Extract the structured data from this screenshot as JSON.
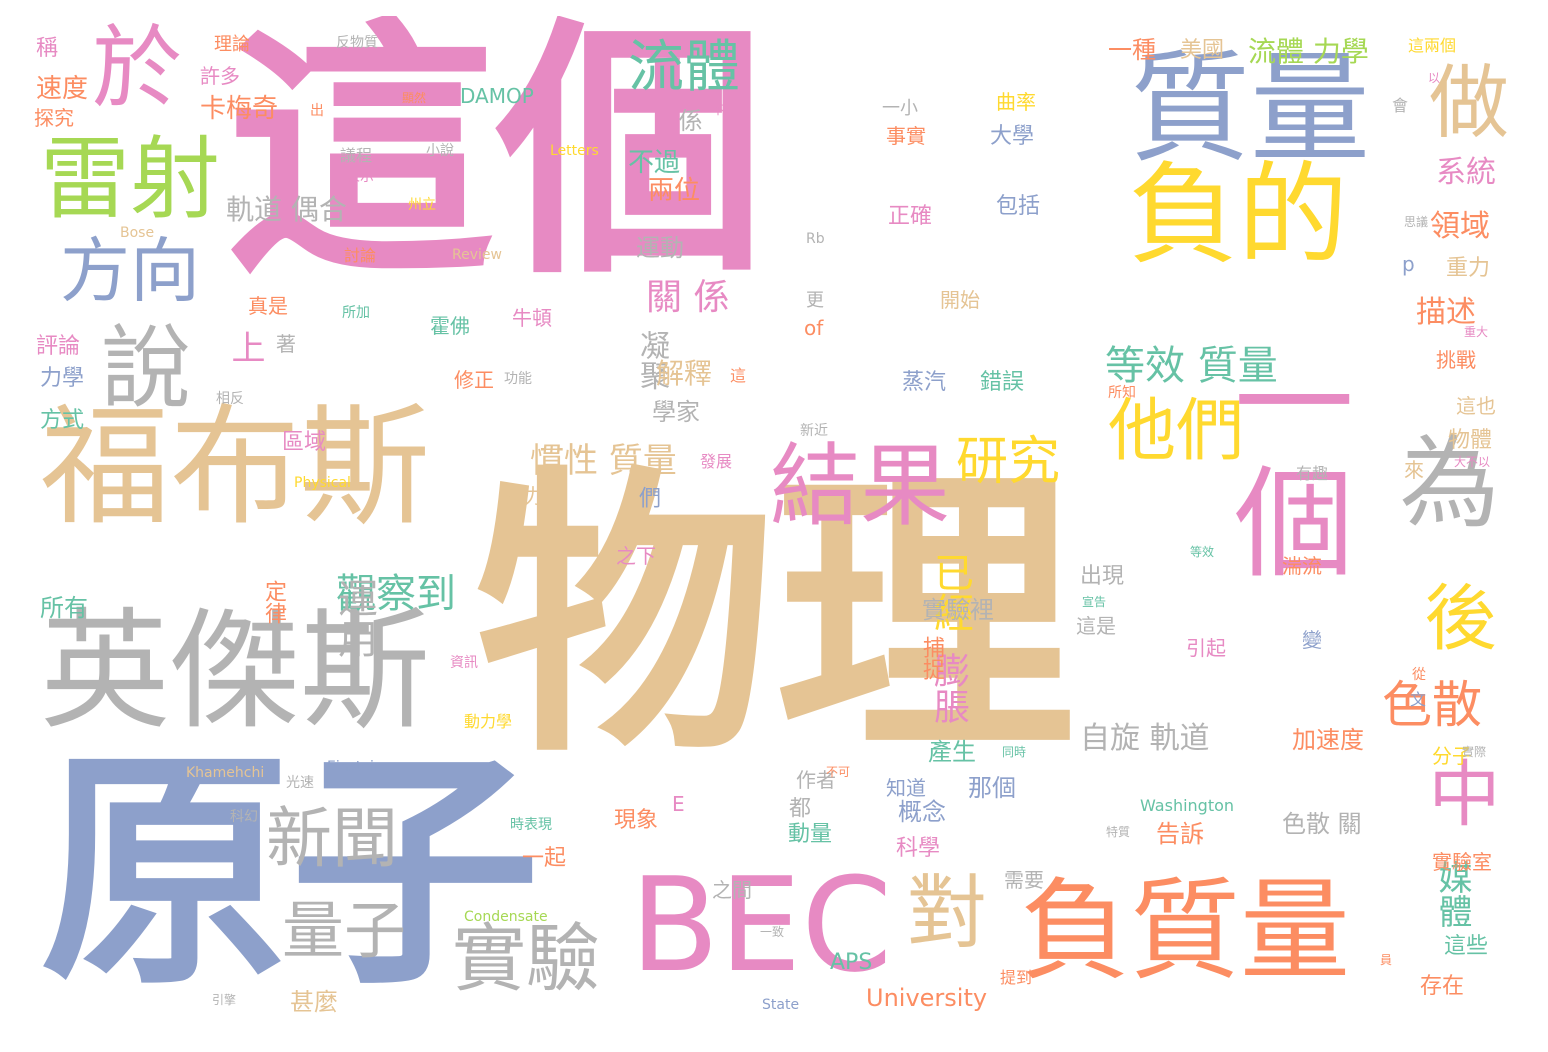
{
  "palette": {
    "pink": "#e78ac3",
    "tan": "#e5c494",
    "blue": "#8da0cb",
    "gray": "#b3b3b3",
    "green": "#a6d854",
    "yellow": "#ffd92f",
    "orange": "#fc8d62",
    "teal": "#66c2a5"
  },
  "words": [
    {
      "text": "這個",
      "color": "pink"
    },
    {
      "text": "物理",
      "color": "tan"
    },
    {
      "text": "原子",
      "color": "blue"
    },
    {
      "text": "福布斯",
      "color": "tan"
    },
    {
      "text": "英傑斯",
      "color": "gray"
    },
    {
      "text": "質量",
      "color": "blue"
    },
    {
      "text": "負的",
      "color": "yellow"
    },
    {
      "text": "負質量",
      "color": "orange"
    },
    {
      "text": "BEC",
      "color": "pink"
    },
    {
      "text": "一個",
      "color": "pink"
    },
    {
      "text": "結果",
      "color": "pink"
    },
    {
      "text": "為",
      "color": "gray"
    },
    {
      "text": "於",
      "color": "pink"
    },
    {
      "text": "雷射",
      "color": "green"
    },
    {
      "text": "說",
      "color": "gray"
    },
    {
      "text": "方向",
      "color": "blue"
    },
    {
      "text": "做",
      "color": "tan"
    },
    {
      "text": "對",
      "color": "tan"
    },
    {
      "text": "他們",
      "color": "yellow"
    },
    {
      "text": "後",
      "color": "yellow"
    },
    {
      "text": "中",
      "color": "pink"
    },
    {
      "text": "實驗",
      "color": "gray"
    },
    {
      "text": "新聞",
      "color": "gray"
    },
    {
      "text": "量子",
      "color": "gray"
    },
    {
      "text": "流體",
      "color": "teal"
    },
    {
      "text": "研究",
      "color": "yellow"
    },
    {
      "text": "色散",
      "color": "orange"
    },
    {
      "text": "等效 質量",
      "color": "teal"
    },
    {
      "text": "觀察到",
      "color": "teal"
    },
    {
      "text": "運用",
      "color": "gray"
    },
    {
      "text": "已經",
      "color": "yellow"
    },
    {
      "text": "慣性 質量",
      "color": "tan"
    },
    {
      "text": "關 係",
      "color": "pink"
    },
    {
      "text": "膨脹",
      "color": "pink"
    },
    {
      "text": "媒體",
      "color": "teal"
    },
    {
      "text": "系統",
      "color": "pink"
    },
    {
      "text": "領域",
      "color": "orange"
    },
    {
      "text": "描述",
      "color": "orange"
    },
    {
      "text": "自旋 軌道",
      "color": "gray"
    },
    {
      "text": "軌道 偶合",
      "color": "gray"
    },
    {
      "text": "流體 力學",
      "color": "green"
    },
    {
      "text": "一種",
      "color": "orange"
    },
    {
      "text": "美國",
      "color": "tan"
    },
    {
      "text": "上",
      "color": "pink"
    },
    {
      "text": "凝聚",
      "color": "gray"
    },
    {
      "text": "解釋",
      "color": "tan"
    },
    {
      "text": "不過",
      "color": "teal"
    },
    {
      "text": "兩位",
      "color": "orange"
    },
    {
      "text": "運動",
      "color": "gray"
    },
    {
      "text": "學家",
      "color": "gray"
    },
    {
      "text": "係",
      "color": "gray"
    },
    {
      "text": "速度",
      "color": "orange"
    },
    {
      "text": "卡梅奇",
      "color": "orange"
    },
    {
      "text": "理論",
      "color": "orange"
    },
    {
      "text": "許多",
      "color": "pink"
    },
    {
      "text": "稱",
      "color": "pink"
    },
    {
      "text": "探究",
      "color": "orange"
    },
    {
      "text": "DAMOP",
      "color": "teal"
    },
    {
      "text": "牛頓",
      "color": "pink"
    },
    {
      "text": "霍佛",
      "color": "teal"
    },
    {
      "text": "區域",
      "color": "pink"
    },
    {
      "text": "評論",
      "color": "pink"
    },
    {
      "text": "力學",
      "color": "blue"
    },
    {
      "text": "方式",
      "color": "teal"
    },
    {
      "text": "所有",
      "color": "teal"
    },
    {
      "text": "甚麼",
      "color": "tan"
    },
    {
      "text": "定律",
      "color": "orange"
    },
    {
      "text": "外力",
      "color": "tan"
    },
    {
      "text": "們",
      "color": "blue"
    },
    {
      "text": "之下",
      "color": "pink"
    },
    {
      "text": "出現",
      "color": "gray"
    },
    {
      "text": "這是",
      "color": "gray"
    },
    {
      "text": "實驗裡",
      "color": "gray"
    },
    {
      "text": "捕捉",
      "color": "orange"
    },
    {
      "text": "產生",
      "color": "teal"
    },
    {
      "text": "那個",
      "color": "blue"
    },
    {
      "text": "概念",
      "color": "blue"
    },
    {
      "text": "作者",
      "color": "gray"
    },
    {
      "text": "都",
      "color": "gray"
    },
    {
      "text": "科學",
      "color": "pink"
    },
    {
      "text": "動量",
      "color": "teal"
    },
    {
      "text": "需要",
      "color": "gray"
    },
    {
      "text": "現象",
      "color": "orange"
    },
    {
      "text": "一起",
      "color": "orange"
    },
    {
      "text": "E",
      "color": "pink"
    },
    {
      "text": "告訴",
      "color": "orange"
    },
    {
      "text": "色散 關",
      "color": "gray"
    },
    {
      "text": "University",
      "color": "orange"
    },
    {
      "text": "APS",
      "color": "teal"
    },
    {
      "text": "存在",
      "color": "orange"
    },
    {
      "text": "這些",
      "color": "teal"
    },
    {
      "text": "實驗室",
      "color": "orange"
    },
    {
      "text": "加速度",
      "color": "orange"
    },
    {
      "text": "分子",
      "color": "yellow"
    },
    {
      "text": "蒸汽",
      "color": "blue"
    },
    {
      "text": "錯誤",
      "color": "teal"
    },
    {
      "text": "開始",
      "color": "tan"
    },
    {
      "text": "曲率",
      "color": "yellow"
    },
    {
      "text": "事實",
      "color": "orange"
    },
    {
      "text": "大學",
      "color": "blue"
    },
    {
      "text": "正確",
      "color": "pink"
    },
    {
      "text": "包括",
      "color": "blue"
    },
    {
      "text": "一小",
      "color": "gray"
    },
    {
      "text": "物體",
      "color": "tan"
    },
    {
      "text": "重力",
      "color": "tan"
    },
    {
      "text": "挑戰",
      "color": "orange"
    },
    {
      "text": "這也",
      "color": "tan"
    },
    {
      "text": "修正",
      "color": "orange"
    },
    {
      "text": "真是",
      "color": "orange"
    },
    {
      "text": "著",
      "color": "gray"
    },
    {
      "text": "更",
      "color": "gray"
    },
    {
      "text": "of",
      "color": "orange"
    },
    {
      "text": "p",
      "color": "blue"
    },
    {
      "text": "變",
      "color": "blue"
    },
    {
      "text": "引起",
      "color": "pink"
    },
    {
      "text": "湍流",
      "color": "orange"
    },
    {
      "text": "來",
      "color": "tan"
    },
    {
      "text": "知道",
      "color": "blue"
    },
    {
      "text": "之間",
      "color": "gray"
    },
    {
      "text": "Washington",
      "color": "teal"
    },
    {
      "text": "Einstein",
      "color": "blue"
    },
    {
      "text": "Khamehchi",
      "color": "tan"
    },
    {
      "text": "Condensate",
      "color": "green"
    },
    {
      "text": "State",
      "color": "blue"
    },
    {
      "text": "Physical",
      "color": "yellow"
    },
    {
      "text": "Review",
      "color": "tan"
    },
    {
      "text": "Letters",
      "color": "yellow"
    },
    {
      "text": "Bose",
      "color": "tan"
    },
    {
      "text": "Rb",
      "color": "gray"
    },
    {
      "text": "反物質",
      "color": "gray"
    },
    {
      "text": "議程",
      "color": "gray"
    },
    {
      "text": "小說",
      "color": "gray"
    },
    {
      "text": "這兩個",
      "color": "yellow"
    },
    {
      "text": "動力學",
      "color": "yellow"
    },
    {
      "text": "時表現",
      "color": "teal"
    },
    {
      "text": "討論",
      "color": "orange"
    },
    {
      "text": "所加",
      "color": "teal"
    },
    {
      "text": "功能",
      "color": "gray"
    },
    {
      "text": "發展",
      "color": "pink"
    },
    {
      "text": "大不以",
      "color": "pink"
    },
    {
      "text": "有趣",
      "color": "gray"
    },
    {
      "text": "新近",
      "color": "gray"
    },
    {
      "text": "所知",
      "color": "orange"
    },
    {
      "text": "宣告",
      "color": "teal"
    },
    {
      "text": "光速",
      "color": "gray"
    },
    {
      "text": "引擎",
      "color": "gray"
    },
    {
      "text": "一致",
      "color": "gray"
    },
    {
      "text": "等效",
      "color": "teal"
    },
    {
      "text": "不可",
      "color": "orange"
    },
    {
      "text": "提到",
      "color": "orange"
    },
    {
      "text": "表示",
      "color": "pink"
    },
    {
      "text": "州立",
      "color": "yellow"
    },
    {
      "text": "相反",
      "color": "gray"
    },
    {
      "text": "顯然",
      "color": "orange"
    },
    {
      "text": "以",
      "color": "pink"
    },
    {
      "text": "會",
      "color": "gray"
    },
    {
      "text": "實際",
      "color": "gray"
    },
    {
      "text": "出",
      "color": "orange"
    },
    {
      "text": "不",
      "color": "pink"
    },
    {
      "text": "重大",
      "color": "pink"
    },
    {
      "text": "特質",
      "color": "gray"
    },
    {
      "text": "思議",
      "color": "gray"
    },
    {
      "text": "這",
      "color": "orange"
    },
    {
      "text": "同時",
      "color": "teal"
    },
    {
      "text": "資訊",
      "color": "pink"
    },
    {
      "text": "科幻",
      "color": "gray"
    },
    {
      "text": "文",
      "color": "blue"
    },
    {
      "text": "從",
      "color": "orange"
    },
    {
      "text": "員",
      "color": "orange"
    }
  ]
}
